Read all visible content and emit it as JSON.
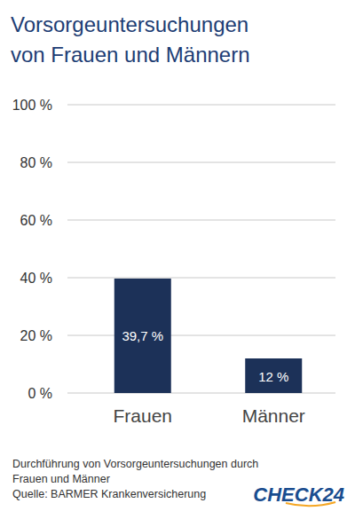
{
  "chart_data": {
    "type": "bar",
    "title": [
      "Vorsorgeuntersuchungen",
      "von Frauen und Männern"
    ],
    "categories": [
      "Frauen",
      "Männer"
    ],
    "values": [
      39.7,
      12
    ],
    "value_labels": [
      "39,7 %",
      "12 %"
    ],
    "data_labels": true,
    "color": "#1c3158",
    "ylim": [
      0,
      100
    ],
    "yticks": [
      {
        "value": 0,
        "label": "0 %"
      },
      {
        "value": 20,
        "label": "20 %"
      },
      {
        "value": 40,
        "label": "40 %"
      },
      {
        "value": 60,
        "label": "60 %"
      },
      {
        "value": 80,
        "label": "80 %"
      },
      {
        "value": 100,
        "label": "100 %"
      }
    ],
    "grid": true,
    "caption": [
      "Durchführung von Vorsorgeuntersuchungen durch",
      "Frauen und Männer"
    ],
    "source": "Quelle: BARMER Krankenversicherung",
    "logo": "CHECK24"
  }
}
